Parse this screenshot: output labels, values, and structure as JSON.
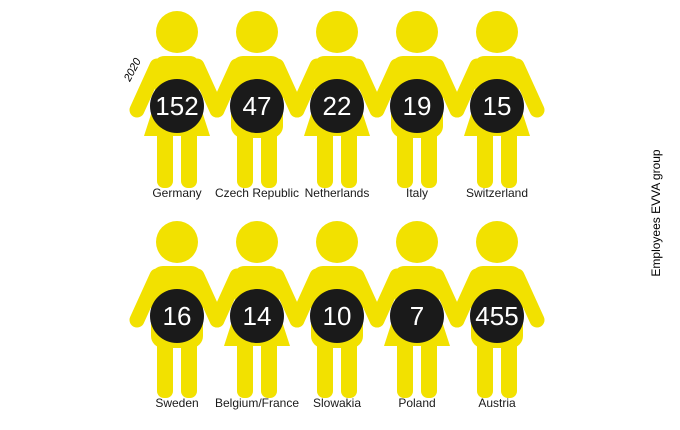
{
  "chart_data": {
    "type": "pictogram",
    "year": "2020",
    "side_label": "Employees EVVA group",
    "categories": [
      "Germany",
      "Czech Republic",
      "Netherlands",
      "Italy",
      "Switzerland",
      "Sweden",
      "Belgium/France",
      "Slowakia",
      "Poland",
      "Austria"
    ],
    "values": [
      152,
      47,
      22,
      19,
      15,
      16,
      14,
      10,
      7,
      455
    ],
    "color": "#f2e100",
    "label_color": "#1a1a1a"
  }
}
